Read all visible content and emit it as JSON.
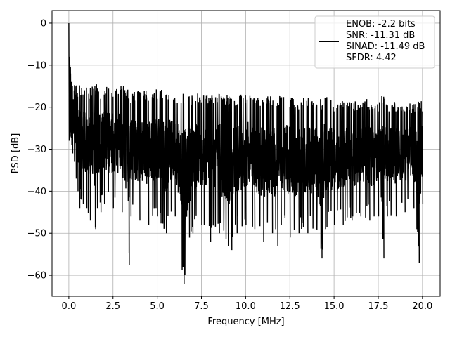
{
  "chart_data": {
    "type": "line",
    "title": "",
    "xlabel": "Frequency [MHz]",
    "ylabel": "PSD [dB]",
    "xlim": [
      -0.95,
      21.0
    ],
    "ylim": [
      -65.0,
      3.0
    ],
    "xticks": [
      0.0,
      2.5,
      5.0,
      7.5,
      10.0,
      12.5,
      15.0,
      17.5,
      20.0
    ],
    "xtick_labels": [
      "0.0",
      "2.5",
      "5.0",
      "7.5",
      "10.0",
      "12.5",
      "15.0",
      "17.5",
      "20.0"
    ],
    "yticks": [
      0,
      -10,
      -20,
      -30,
      -40,
      -50,
      -60
    ],
    "ytick_labels": [
      "0",
      "−10",
      "−20",
      "−30",
      "−40",
      "−50",
      "−60"
    ],
    "grid": true,
    "legend_position": "upper-right",
    "series": [
      {
        "color": "#000000",
        "legend_lines": [
          "ENOB: -2.2 bits",
          "SNR: -11.31 dB",
          "SINAD: -11.49 dB",
          "SFDR: 4.42"
        ],
        "x": [
          0.0,
          0.03,
          0.06,
          0.1,
          0.15,
          0.2,
          0.3,
          0.4,
          0.5,
          0.6,
          0.7,
          0.8,
          1.0,
          1.2,
          1.5,
          1.6,
          1.8,
          2.0,
          2.5,
          3.0,
          3.4,
          3.5,
          4.0,
          4.5,
          5.0,
          5.5,
          6.0,
          6.5,
          7.0,
          7.5,
          8.0,
          8.5,
          9.0,
          9.2,
          9.5,
          10.0,
          10.5,
          11.0,
          11.5,
          11.8,
          12.0,
          12.5,
          13.0,
          13.5,
          14.0,
          14.3,
          14.5,
          15.0,
          15.5,
          16.0,
          16.5,
          17.0,
          17.5,
          17.8,
          18.0,
          18.5,
          19.0,
          19.5,
          19.8,
          20.0
        ],
        "y_upper": [
          0.0,
          -8.0,
          -10.0,
          -12.0,
          -14.0,
          -15.0,
          -16.0,
          -17.0,
          -17.5,
          -16.0,
          -18.0,
          -17.0,
          -17.0,
          -18.0,
          -17.0,
          -16.0,
          -18.0,
          -17.0,
          -17.5,
          -17.0,
          -18.0,
          -19.0,
          -18.0,
          -18.5,
          -18.0,
          -18.5,
          -19.0,
          -19.0,
          -19.5,
          -19.0,
          -19.5,
          -19.0,
          -19.5,
          -20.0,
          -19.5,
          -19.0,
          -20.0,
          -20.0,
          -19.5,
          -20.0,
          -19.0,
          -20.0,
          -20.5,
          -20.0,
          -20.5,
          -20.5,
          -19.0,
          -21.0,
          -21.0,
          -21.0,
          -20.5,
          -20.5,
          -21.0,
          -19.0,
          -21.0,
          -21.0,
          -21.0,
          -21.5,
          -21.0,
          -21.0
        ],
        "y_lower": [
          -28.0,
          -25.0,
          -26.0,
          -27.0,
          -29.0,
          -31.0,
          -33.0,
          -37.0,
          -40.0,
          -44.0,
          -42.0,
          -43.0,
          -44.0,
          -47.0,
          -49.0,
          -44.0,
          -45.0,
          -43.0,
          -44.0,
          -45.0,
          -57.5,
          -46.0,
          -47.0,
          -48.0,
          -46.0,
          -50.0,
          -46.0,
          -62.0,
          -50.0,
          -48.0,
          -52.0,
          -50.0,
          -53.0,
          -54.0,
          -50.0,
          -48.0,
          -49.0,
          -52.0,
          -50.0,
          -53.0,
          -48.0,
          -51.0,
          -50.0,
          -50.0,
          -49.0,
          -56.0,
          -49.0,
          -48.0,
          -48.0,
          -47.0,
          -46.0,
          -47.0,
          -46.0,
          -56.0,
          -46.0,
          -46.0,
          -45.0,
          -44.0,
          -57.0,
          -43.0
        ]
      }
    ]
  }
}
